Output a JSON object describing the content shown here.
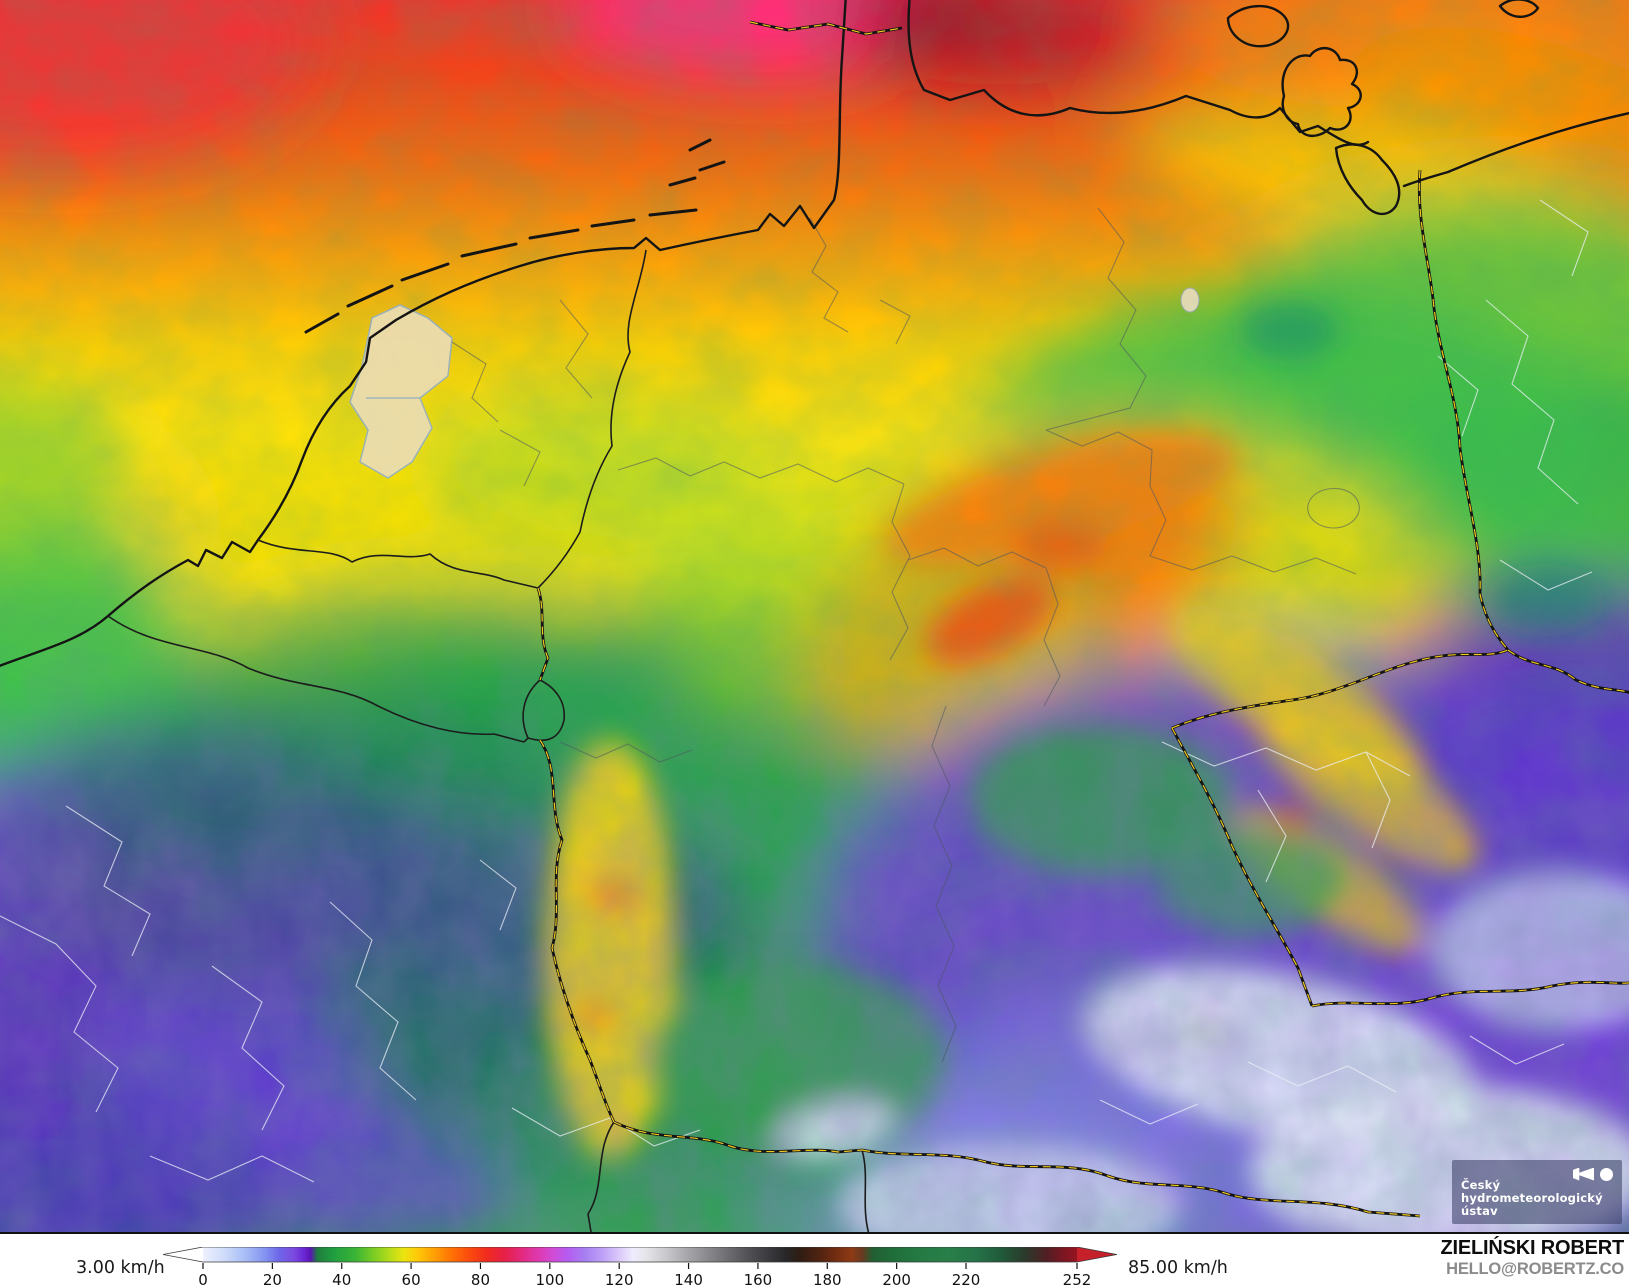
{
  "map": {
    "logo_badge": {
      "line1": "Český",
      "line2": "hydrometeorologický",
      "line3": "ústav"
    }
  },
  "legend": {
    "min_label": "3.00 km/h",
    "max_label": "85.00 km/h",
    "unit": "km/h",
    "max_value": 252,
    "ticks": [
      0,
      20,
      40,
      60,
      80,
      100,
      120,
      140,
      160,
      180,
      200,
      220,
      252
    ],
    "left_arrow_color": "#ffffff",
    "right_arrow_color": "#c6202b",
    "gradient_stops": [
      [
        0,
        "#eef1fe"
      ],
      [
        6,
        "#cfdcfa"
      ],
      [
        12,
        "#a9bef7"
      ],
      [
        18,
        "#8292f0"
      ],
      [
        22,
        "#6e66e8"
      ],
      [
        26,
        "#7b4ce0"
      ],
      [
        29,
        "#6a28d4"
      ],
      [
        31,
        "#5a14b4"
      ],
      [
        33,
        "#1e7d3e"
      ],
      [
        38,
        "#21a040"
      ],
      [
        44,
        "#3bb436"
      ],
      [
        49,
        "#78cc24"
      ],
      [
        54,
        "#b8dc1a"
      ],
      [
        58,
        "#ece410"
      ],
      [
        62,
        "#ffc808"
      ],
      [
        67,
        "#ff9c05"
      ],
      [
        72,
        "#ff6f05"
      ],
      [
        77,
        "#fb490e"
      ],
      [
        82,
        "#f02a1e"
      ],
      [
        87,
        "#e62048"
      ],
      [
        92,
        "#e22a80"
      ],
      [
        97,
        "#dd3ab2"
      ],
      [
        101,
        "#d04bd6"
      ],
      [
        105,
        "#b55cf0"
      ],
      [
        110,
        "#a77ef2"
      ],
      [
        115,
        "#bd9ff6"
      ],
      [
        120,
        "#dbc9fa"
      ],
      [
        124,
        "#efecfd"
      ],
      [
        128,
        "#e4e4e8"
      ],
      [
        134,
        "#c6c6ca"
      ],
      [
        140,
        "#a5a5a9"
      ],
      [
        146,
        "#87878b"
      ],
      [
        152,
        "#6a6a6e"
      ],
      [
        158,
        "#4e4e52"
      ],
      [
        164,
        "#37373b"
      ],
      [
        168,
        "#272729"
      ],
      [
        172,
        "#2f1d13"
      ],
      [
        177,
        "#4b2212"
      ],
      [
        182,
        "#6f2b10"
      ],
      [
        187,
        "#8e3a15"
      ],
      [
        190,
        "#69391f"
      ],
      [
        193,
        "#225e32"
      ],
      [
        199,
        "#1f6e3a"
      ],
      [
        207,
        "#257a44"
      ],
      [
        215,
        "#287f48"
      ],
      [
        223,
        "#257248"
      ],
      [
        230,
        "#205b3a"
      ],
      [
        237,
        "#2b3a2c"
      ],
      [
        243,
        "#4f2024"
      ],
      [
        248,
        "#7c1622"
      ],
      [
        252,
        "#951421"
      ]
    ]
  },
  "attribution": {
    "name": "ZIELIŃSKI ROBERT",
    "email": "HELLO@ROBERTZ.CO"
  }
}
